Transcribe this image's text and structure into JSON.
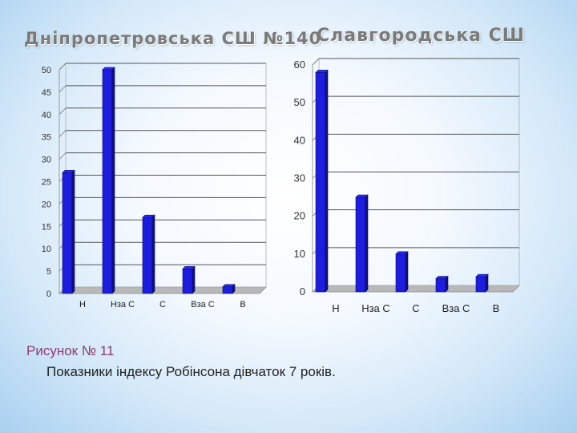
{
  "chart_data": [
    {
      "type": "bar",
      "title": "Дніпропетровська СШ №140",
      "categories": [
        "Н",
        "Нза С",
        "С",
        "Вза С",
        "В"
      ],
      "values": [
        27,
        50,
        17,
        5.5,
        1.5
      ],
      "ylim": [
        0,
        50
      ],
      "yticks": [
        0,
        5,
        10,
        15,
        20,
        25,
        30,
        35,
        40,
        45,
        50
      ],
      "grid": true,
      "bar_color": "#1d1de0"
    },
    {
      "type": "bar",
      "title": "Славгородська СШ",
      "categories": [
        "Н",
        "Нза С",
        "С",
        "Вза С",
        "В"
      ],
      "values": [
        58,
        25,
        10,
        3.5,
        4
      ],
      "ylim": [
        0,
        60
      ],
      "yticks": [
        0,
        10,
        20,
        30,
        40,
        50,
        60
      ],
      "grid": true,
      "bar_color": "#1d1de0"
    }
  ],
  "caption": {
    "figure_label": "Рисунок № 11",
    "text": "Показники індексу Робінсона дівчаток 7 років."
  }
}
